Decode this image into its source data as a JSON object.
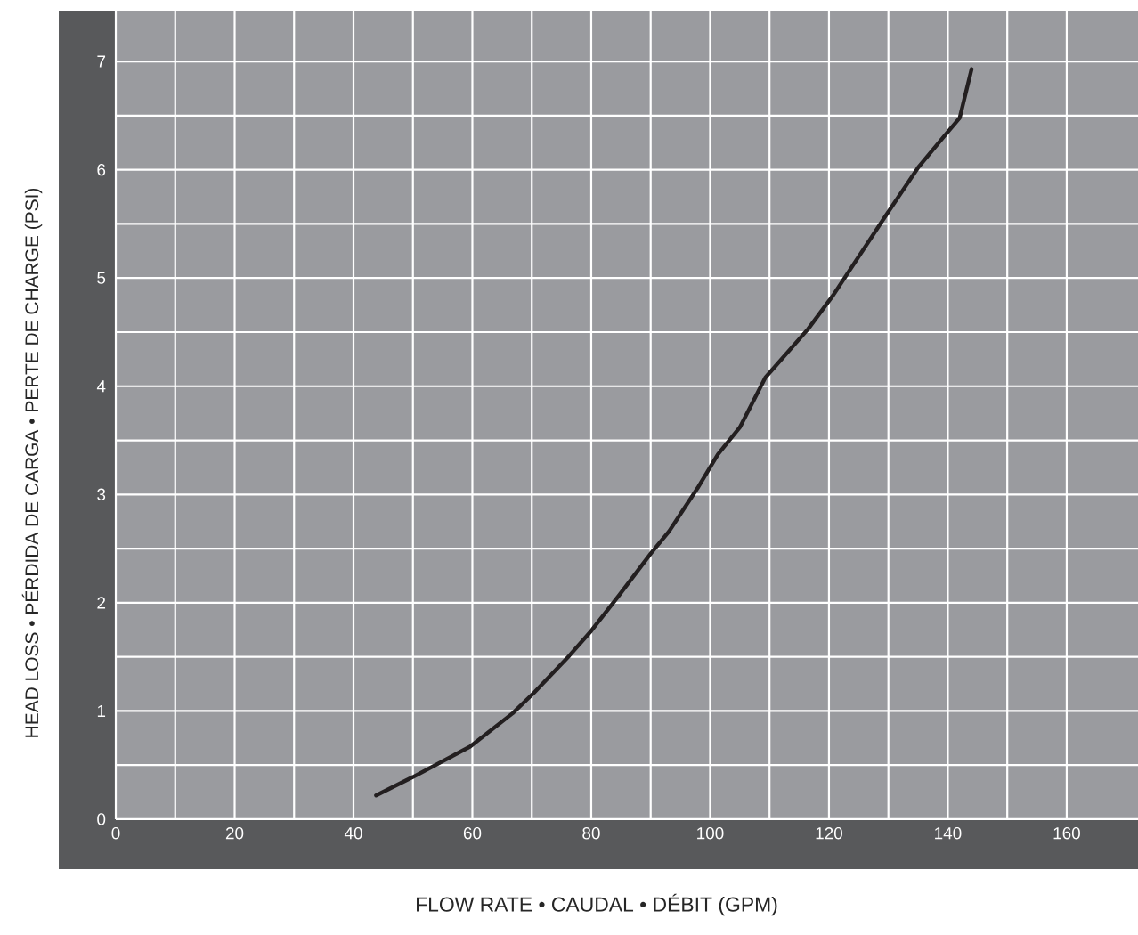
{
  "chart_data": {
    "type": "line",
    "xlabel": "FLOW RATE • CAUDAL • DÉBIT (GPM)",
    "ylabel": "HEAD LOSS • PÉRDIDA DE CARGA • PERTE DE CHARGE  (PSI)",
    "x": [
      43.8,
      50,
      59.6,
      66.8,
      70.4,
      76.3,
      80,
      84.7,
      90.1,
      93.1,
      97.9,
      101.3,
      105,
      109.3,
      116.5,
      120.7,
      129,
      135,
      139.4,
      142,
      144
    ],
    "series": [
      {
        "color": "#231f20",
        "values": [
          0.22,
          0.39,
          0.67,
          0.98,
          1.17,
          1.51,
          1.74,
          2.07,
          2.46,
          2.66,
          3.06,
          3.37,
          3.62,
          4.08,
          4.53,
          4.84,
          5.53,
          6.02,
          6.31,
          6.48,
          6.93
        ]
      }
    ],
    "xlim": [
      0,
      172
    ],
    "ylim": [
      0,
      7.47
    ],
    "xticks": [
      0,
      20,
      40,
      60,
      80,
      100,
      120,
      140,
      160
    ],
    "yticks": [
      0,
      1,
      2,
      3,
      4,
      5,
      6,
      7
    ],
    "grid": true,
    "line_style": "solid"
  }
}
